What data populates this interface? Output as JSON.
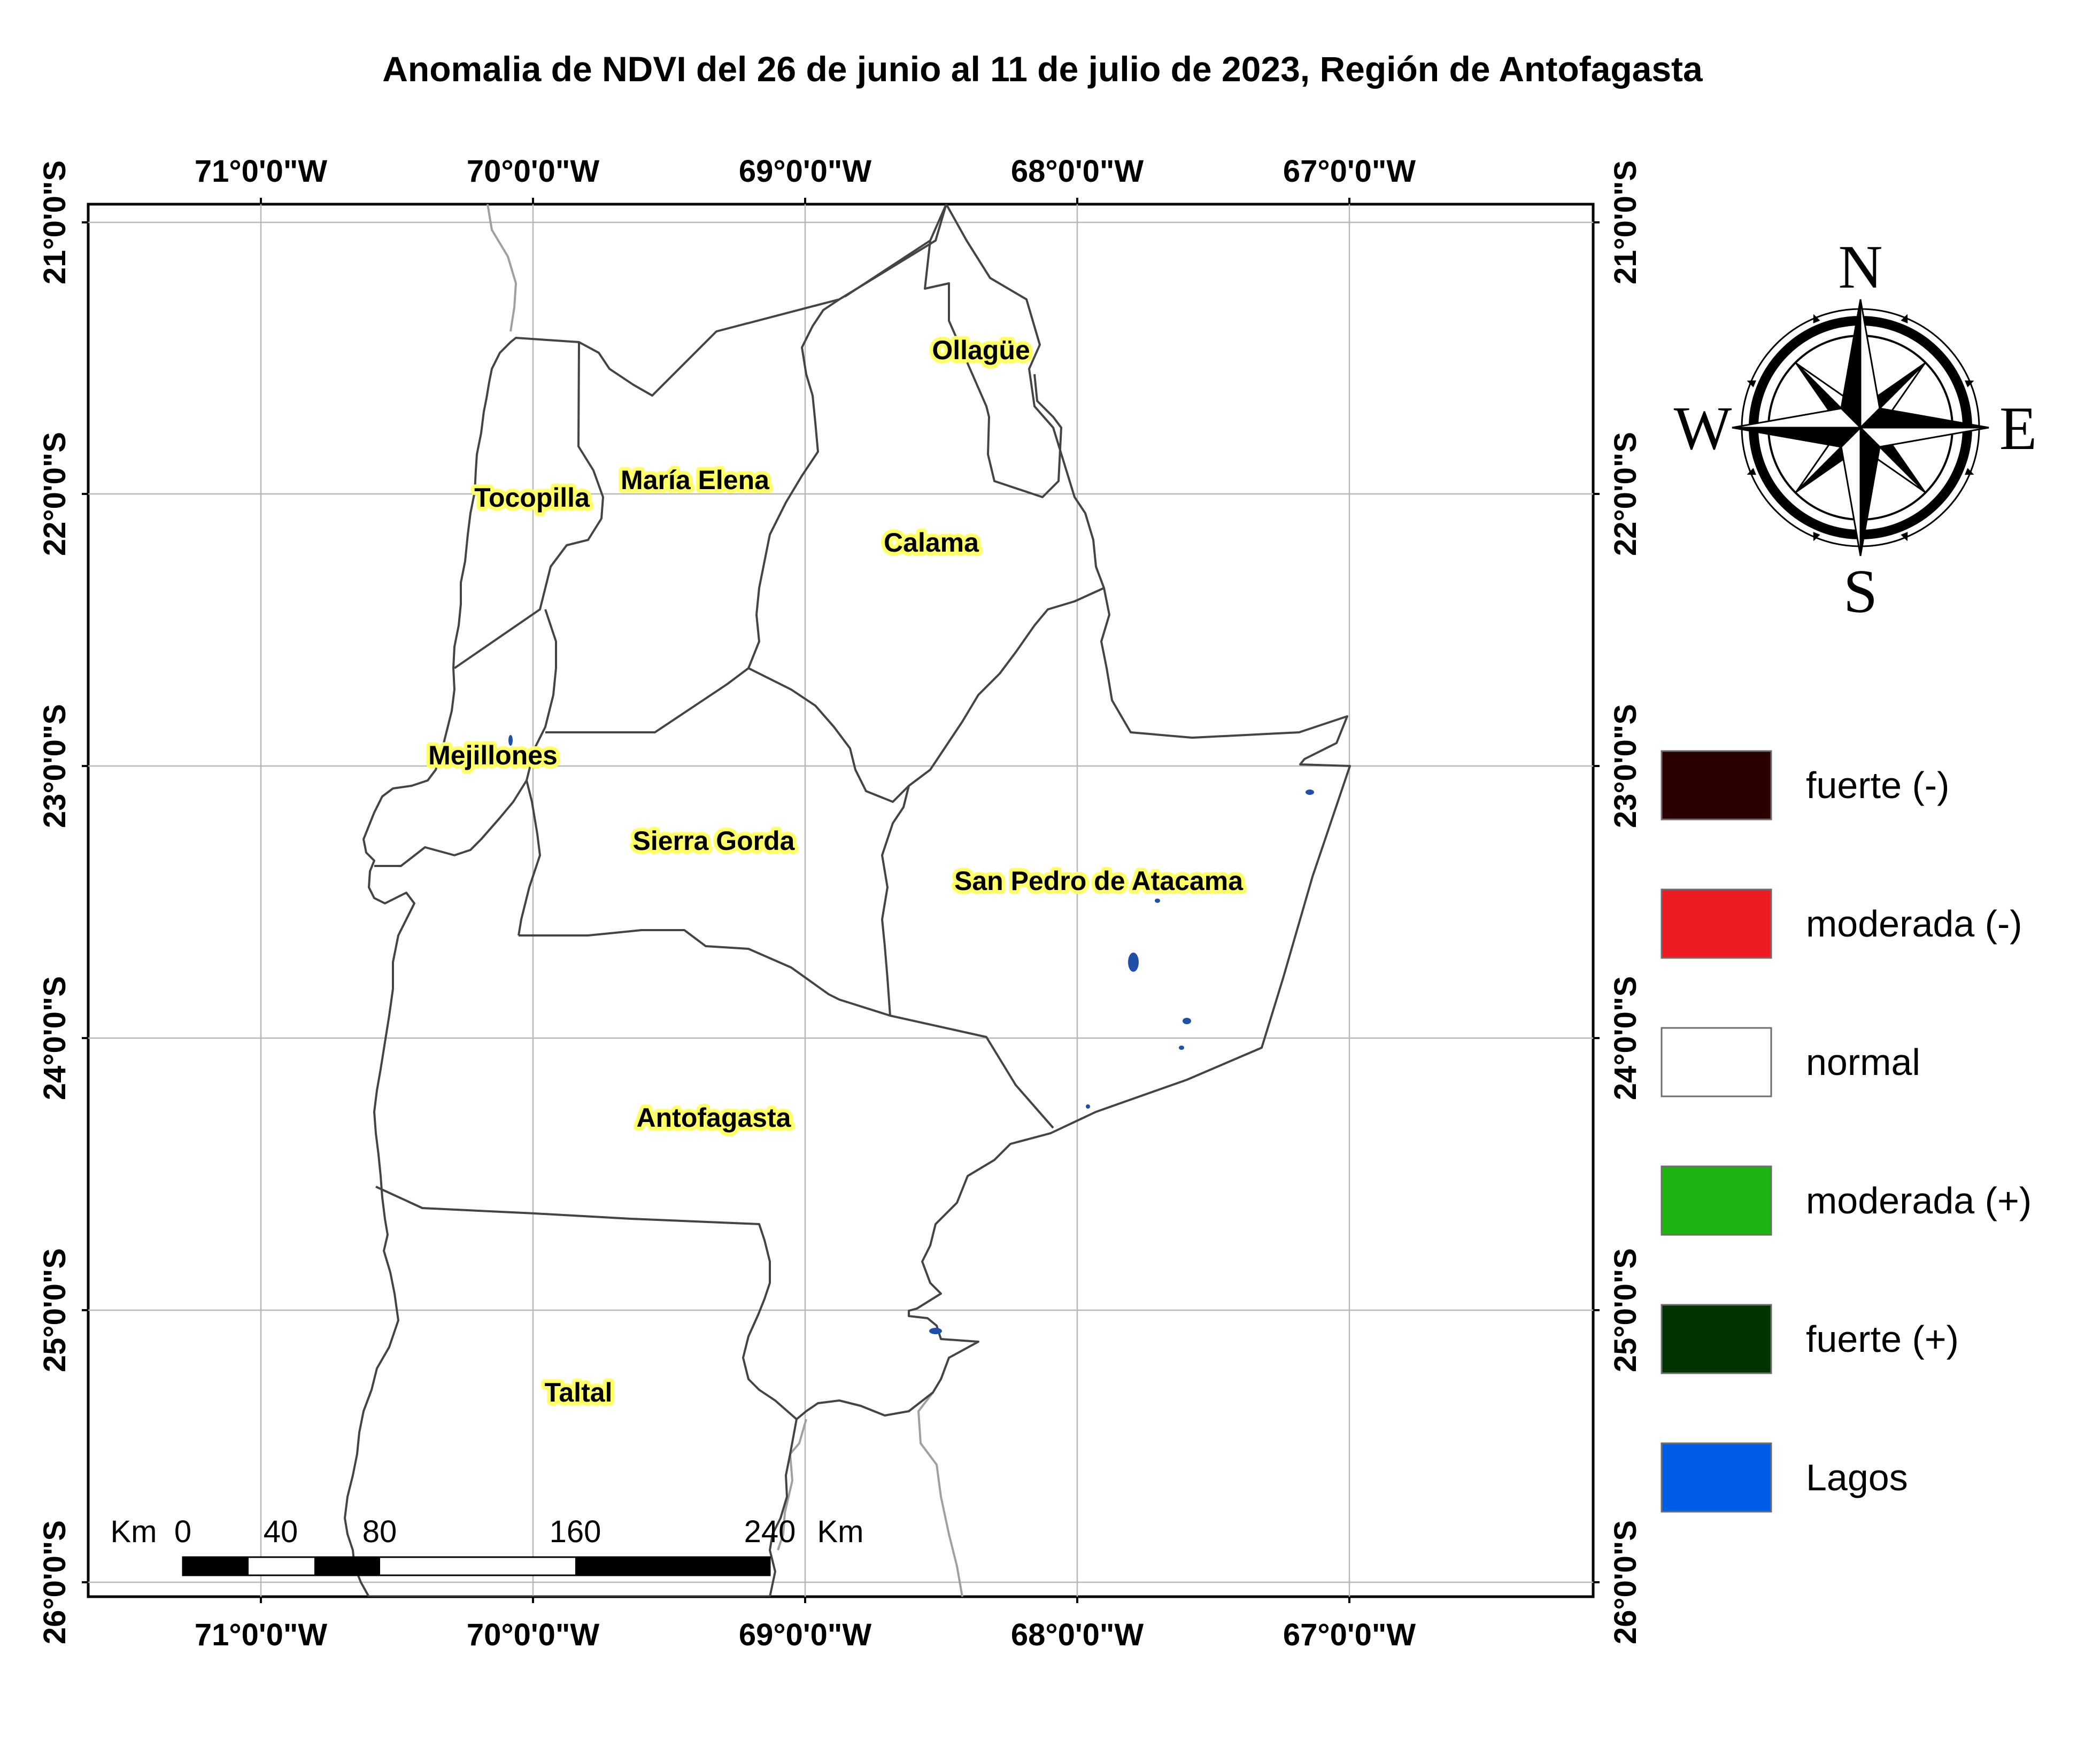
{
  "title": "Anomalia de NDVI del 26 de junio al 11 de julio de 2023, Región de Antofagasta",
  "axes": {
    "lon_ticks": [
      "71°0'0\"W",
      "70°0'0\"W",
      "69°0'0\"W",
      "68°0'0\"W",
      "67°0'0\"W"
    ],
    "lat_ticks": [
      "21°0'0\"S",
      "22°0'0\"S",
      "23°0'0\"S",
      "24°0'0\"S",
      "25°0'0\"S",
      "26°0'0\"S"
    ]
  },
  "places": [
    "Ollagüe",
    "María Elena",
    "Tocopilla",
    "Calama",
    "Mejillones",
    "Sierra Gorda",
    "San Pedro de Atacama",
    "Antofagasta",
    "Taltal"
  ],
  "compass": {
    "north": "N",
    "south": "S",
    "east": "E",
    "west": "W"
  },
  "legend": [
    {
      "label": "fuerte (-)",
      "color": "#2b0000"
    },
    {
      "label": "moderada (-)",
      "color": "#ed1c24"
    },
    {
      "label": "normal",
      "color": "#ffffff"
    },
    {
      "label": "moderada (+)",
      "color": "#1db311"
    },
    {
      "label": "fuerte (+)",
      "color": "#003300"
    },
    {
      "label": "Lagos",
      "color": "#005ce6"
    }
  ],
  "scale_bar": {
    "unit": "Km",
    "labels": [
      "0",
      "40",
      "80",
      "160",
      "240"
    ]
  }
}
